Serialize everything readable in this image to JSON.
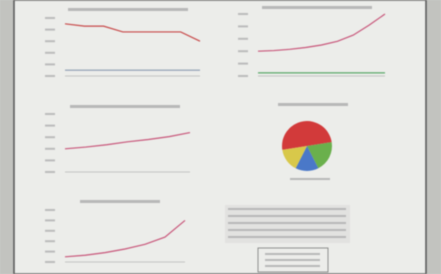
{
  "chart_data": [
    {
      "type": "line",
      "ylim": [
        0,
        10
      ],
      "series": [
        {
          "color": "#c84a4a",
          "values": [
            9,
            8.6,
            8.6,
            7.6,
            7.6,
            7.6,
            7.6,
            6
          ]
        },
        {
          "color": "#8a9ab0",
          "values": [
            1,
            1,
            1,
            1,
            1,
            1,
            1,
            1
          ]
        }
      ]
    },
    {
      "type": "line",
      "ylim": [
        0,
        10
      ],
      "series": [
        {
          "color": "#c8567a",
          "values": [
            4,
            4.1,
            4.3,
            4.6,
            5,
            5.6,
            6.6,
            8.2,
            10
          ]
        },
        {
          "color": "#5aa86a",
          "values": [
            0.5,
            0.5,
            0.5,
            0.5,
            0.5,
            0.5,
            0.5,
            0.5,
            0.5
          ]
        }
      ]
    },
    {
      "type": "line",
      "ylim": [
        0,
        10
      ],
      "series": [
        {
          "color": "#c8567a",
          "values": [
            4,
            4.3,
            4.7,
            5.2,
            5.6,
            6.1,
            6.8
          ]
        }
      ]
    },
    {
      "type": "pie",
      "values": [
        50,
        20,
        15,
        15
      ],
      "colors": [
        "#d23a3a",
        "#6ab04c",
        "#4a78c8",
        "#d8c84a"
      ]
    },
    {
      "type": "line",
      "ylim": [
        0,
        10
      ],
      "series": [
        {
          "color": "#c8567a",
          "values": [
            1,
            1.3,
            1.8,
            2.5,
            3.4,
            4.8,
            8
          ]
        }
      ]
    }
  ]
}
